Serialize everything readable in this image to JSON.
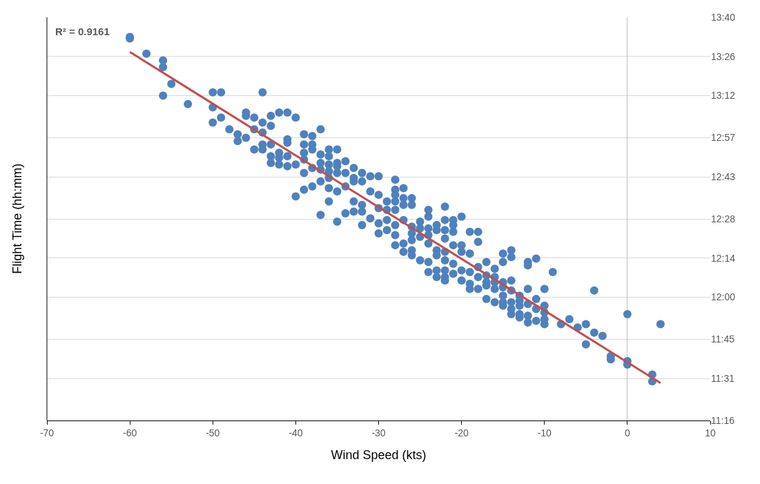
{
  "chart_data": {
    "type": "scatter",
    "xlabel": "Wind Speed (kts)",
    "ylabel": "Flight Time (hh:mm)",
    "annotations": [
      "R² = 0.9161"
    ],
    "xlim": [
      -70,
      10
    ],
    "xticks": [
      -70,
      -60,
      -50,
      -40,
      -30,
      -20,
      -10,
      0,
      10
    ],
    "ylim": [
      11.2667,
      13.6667
    ],
    "yticks": [
      {
        "value": 11.2667,
        "label": "11:16"
      },
      {
        "value": 11.5167,
        "label": "11:31"
      },
      {
        "value": 11.75,
        "label": "11:45"
      },
      {
        "value": 12,
        "label": "12:00"
      },
      {
        "value": 12.2333,
        "label": "12:14"
      },
      {
        "value": 12.4667,
        "label": "12:28"
      },
      {
        "value": 12.7167,
        "label": "12:43"
      },
      {
        "value": 12.95,
        "label": "12:57"
      },
      {
        "value": 13.2,
        "label": "13:12"
      },
      {
        "value": 13.4333,
        "label": "13:26"
      },
      {
        "value": 13.6667,
        "label": "13:40"
      }
    ],
    "grid": "y",
    "marker": "circle",
    "series": [
      {
        "color": "#4f81bd",
        "x": [
          -60,
          -60,
          -58,
          -56,
          -56,
          -56,
          -55,
          -53,
          -50,
          -50,
          -50,
          -49,
          -49,
          -48,
          -47,
          -47,
          -46,
          -46,
          -46,
          -45,
          -45,
          -45,
          -44,
          -44,
          -44,
          -44,
          -44,
          -43,
          -43,
          -43,
          -43,
          -43,
          -42,
          -42,
          -42,
          -42,
          -41,
          -41,
          -41,
          -41,
          -41,
          -40,
          -40,
          -40,
          -39,
          -39,
          -39,
          -39,
          -39,
          -39,
          -38,
          -38,
          -38,
          -38,
          -38,
          -37,
          -37,
          -37,
          -37,
          -37,
          -37,
          -36,
          -36,
          -36,
          -36,
          -36,
          -36,
          -36,
          -35,
          -35,
          -35,
          -35,
          -35,
          -35,
          -34,
          -34,
          -34,
          -34,
          -33,
          -33,
          -33,
          -33,
          -33,
          -32,
          -32,
          -32,
          -32,
          -32,
          -31,
          -31,
          -31,
          -30,
          -30,
          -30,
          -30,
          -30,
          -29,
          -29,
          -29,
          -29,
          -28,
          -28,
          -28,
          -28,
          -28,
          -28,
          -28,
          -28,
          -27,
          -27,
          -27,
          -27,
          -27,
          -27,
          -26,
          -26,
          -26,
          -26,
          -26,
          -26,
          -26,
          -25,
          -25,
          -25,
          -25,
          -24,
          -24,
          -24,
          -24,
          -24,
          -24,
          -24,
          -23,
          -23,
          -23,
          -23,
          -23,
          -23,
          -22,
          -22,
          -22,
          -22,
          -22,
          -22,
          -22,
          -22,
          -22,
          -21,
          -21,
          -21,
          -21,
          -21,
          -21,
          -20,
          -20,
          -20,
          -20,
          -20,
          -19,
          -19,
          -19,
          -19,
          -19,
          -18,
          -18,
          -18,
          -18,
          -18,
          -17,
          -17,
          -17,
          -17,
          -17,
          -16,
          -16,
          -16,
          -16,
          -16,
          -15,
          -15,
          -15,
          -15,
          -15,
          -15,
          -15,
          -14,
          -14,
          -14,
          -14,
          -14,
          -14,
          -14,
          -13,
          -13,
          -13,
          -13,
          -13,
          -12,
          -12,
          -12,
          -12,
          -12,
          -12,
          -11,
          -11,
          -11,
          -11,
          -10,
          -10,
          -10,
          -10,
          -10,
          -9,
          -8,
          -7,
          -6,
          -5,
          -5,
          -4,
          -4,
          -3,
          -2,
          -2,
          0,
          0,
          0,
          3,
          3,
          4
        ],
        "values": [
          13.55,
          13.54,
          13.45,
          13.41,
          13.37,
          13.2,
          13.27,
          13.15,
          13.22,
          13.13,
          13.04,
          13.22,
          13.07,
          13.0,
          12.97,
          12.93,
          13.1,
          13.08,
          12.95,
          13.07,
          13.0,
          12.88,
          13.22,
          13.04,
          12.98,
          12.91,
          12.88,
          13.08,
          13.02,
          12.91,
          12.84,
          12.8,
          13.1,
          12.86,
          12.83,
          12.79,
          13.1,
          12.94,
          12.92,
          12.84,
          12.78,
          13.07,
          12.79,
          12.6,
          12.97,
          12.91,
          12.86,
          12.82,
          12.74,
          12.64,
          12.96,
          12.91,
          12.88,
          12.77,
          12.66,
          13.0,
          12.85,
          12.8,
          12.76,
          12.69,
          12.49,
          12.88,
          12.84,
          12.79,
          12.75,
          12.71,
          12.65,
          12.57,
          12.88,
          12.8,
          12.78,
          12.74,
          12.63,
          12.45,
          12.81,
          12.74,
          12.66,
          12.5,
          12.77,
          12.71,
          12.69,
          12.57,
          12.51,
          12.74,
          12.69,
          12.55,
          12.51,
          12.43,
          12.72,
          12.63,
          12.47,
          12.72,
          12.61,
          12.53,
          12.44,
          12.38,
          12.57,
          12.52,
          12.46,
          12.4,
          12.7,
          12.64,
          12.61,
          12.57,
          12.52,
          12.43,
          12.37,
          12.31,
          12.65,
          12.59,
          12.55,
          12.46,
          12.32,
          12.27,
          12.59,
          12.55,
          12.42,
          12.38,
          12.34,
          12.28,
          12.25,
          12.45,
          12.41,
          12.36,
          12.22,
          12.52,
          12.48,
          12.41,
          12.37,
          12.32,
          12.21,
          12.15,
          12.43,
          12.4,
          12.28,
          12.25,
          12.16,
          12.12,
          12.54,
          12.46,
          12.4,
          12.35,
          12.27,
          12.22,
          12.16,
          12.12,
          12.1,
          12.46,
          12.43,
          12.39,
          12.31,
          12.2,
          12.14,
          12.48,
          12.31,
          12.27,
          12.16,
          12.1,
          12.39,
          12.26,
          12.15,
          12.08,
          12.05,
          12.39,
          12.33,
          12.18,
          12.12,
          12.05,
          12.21,
          12.13,
          12.09,
          12.07,
          11.99,
          12.17,
          12.12,
          12.09,
          12.05,
          11.97,
          12.26,
          12.21,
          12.09,
          12.06,
          12.01,
          11.97,
          11.95,
          12.28,
          12.24,
          12.1,
          12.04,
          11.97,
          11.93,
          11.9,
          12.01,
          11.98,
          11.95,
          11.9,
          11.88,
          12.21,
          12.19,
          12.05,
          11.96,
          11.89,
          11.85,
          12.23,
          11.99,
          11.93,
          11.86,
          12.05,
          11.95,
          11.91,
          11.87,
          11.84,
          12.15,
          11.84,
          11.87,
          11.82,
          11.84,
          11.72,
          12.04,
          11.79,
          11.77,
          11.65,
          11.63,
          11.9,
          11.62,
          11.6,
          11.54,
          11.5,
          11.84
        ]
      },
      {
        "type": "line",
        "color": "#c0504d",
        "x": [
          -60,
          4
        ],
        "values": [
          13.46,
          11.49
        ],
        "line_style": "solid",
        "marker": "none"
      }
    ]
  }
}
